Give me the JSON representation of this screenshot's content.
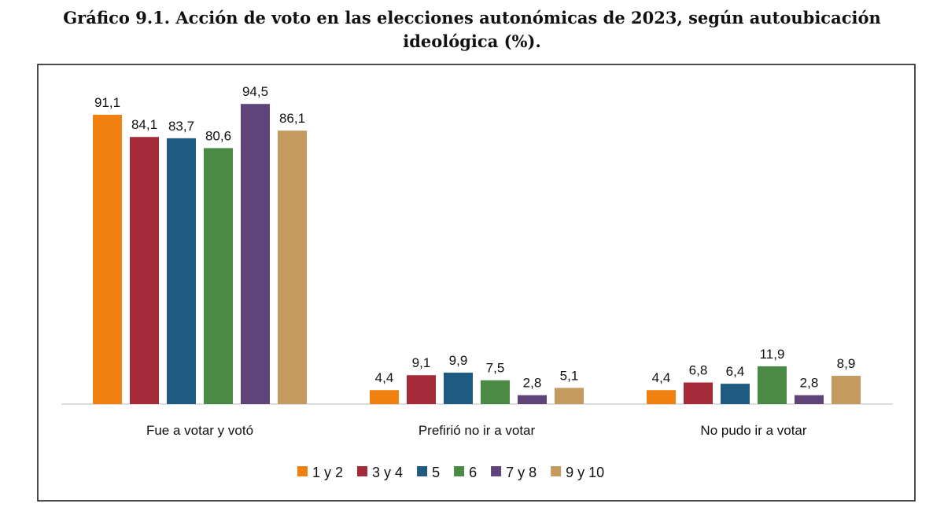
{
  "chart_data": {
    "type": "bar",
    "title": "Gráfico 9.1. Acción de voto en las elecciones autonómicas de 2023, según autoubicación ideológica (%).",
    "title_lines": [
      "Gráfico 9.1. Acción de voto en las elecciones autonómicas de 2023, según autoubicación",
      "ideológica (%)."
    ],
    "categories": [
      "Fue a votar y votó",
      "Prefirió no ir a votar",
      "No pudo ir a votar"
    ],
    "series": [
      {
        "name": "1 y 2",
        "color": "#F0800F",
        "values": [
          91.1,
          4.4,
          4.4
        ]
      },
      {
        "name": "3 y 4",
        "color": "#A52A3A",
        "values": [
          84.1,
          9.1,
          6.8
        ]
      },
      {
        "name": "5",
        "color": "#1F5A80",
        "values": [
          83.7,
          9.9,
          6.4
        ]
      },
      {
        "name": "6",
        "color": "#4A8A45",
        "values": [
          80.6,
          7.5,
          11.9
        ]
      },
      {
        "name": "7 y 8",
        "color": "#5E4478",
        "values": [
          94.5,
          2.8,
          2.8
        ]
      },
      {
        "name": "9 y 10",
        "color": "#C49A5E",
        "values": [
          86.1,
          5.1,
          8.9
        ]
      }
    ],
    "ylim": [
      0,
      100
    ],
    "grid": false,
    "legend": "bottom",
    "data_labels": true
  }
}
